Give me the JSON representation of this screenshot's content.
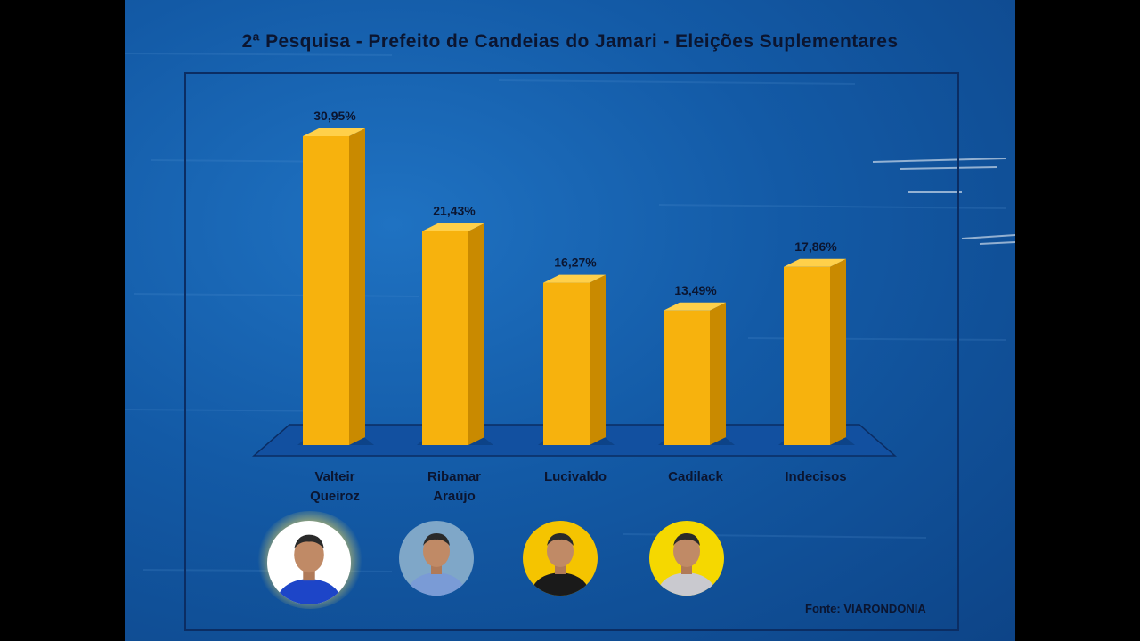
{
  "title": "2ª Pesquisa - Prefeito de Candeias do Jamari - Eleições Suplementares",
  "source": "Fonte: VIARONDONIA",
  "colors": {
    "bar_front": "#f7b20d",
    "bar_side": "#c98a00",
    "bar_top": "#ffd04a",
    "floor": "#1250a0"
  },
  "candidates_photos": [
    {
      "name_icon": "candidate-photo-valteir-icon",
      "bg": "#ffffff",
      "shirt": "#1d45c8"
    },
    {
      "name_icon": "candidate-photo-ribamar-icon",
      "bg": "#7fa7c8",
      "shirt": "#7a9bd6"
    },
    {
      "name_icon": "candidate-photo-lucivaldo-icon",
      "bg": "#f5c400",
      "shirt": "#1a1a1a"
    },
    {
      "name_icon": "candidate-photo-cadilack-icon",
      "bg": "#f5d800",
      "shirt": "#c9c9cf"
    }
  ],
  "chart_data": {
    "type": "bar",
    "title": "2ª Pesquisa - Prefeito de Candeias do Jamari - Eleições Suplementares",
    "categories": [
      [
        "Valteir",
        "Queiroz"
      ],
      [
        "Ribamar",
        "Araújo"
      ],
      [
        "Lucivaldo"
      ],
      [
        "Cadilack"
      ],
      [
        "Indecisos"
      ]
    ],
    "values": [
      30.95,
      21.43,
      16.27,
      13.49,
      17.86
    ],
    "value_labels": [
      "30,95%",
      "21,43%",
      "16,27%",
      "13,49%",
      "17,86%"
    ],
    "ylim": [
      0,
      35
    ],
    "grid": false,
    "legend": "none",
    "xlabel": "",
    "ylabel": ""
  }
}
